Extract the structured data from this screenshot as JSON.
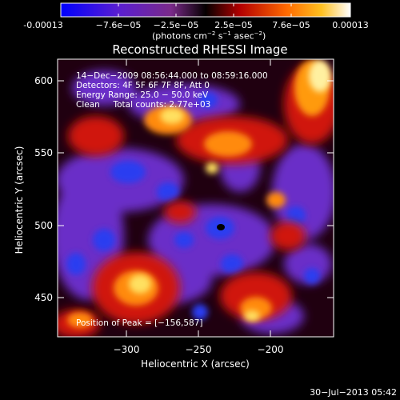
{
  "colorbar": {
    "tick_labels": [
      "-0.00013",
      "−7.6e−05",
      "−2.5e−05",
      "2.5e−05",
      "7.6e−05",
      "0.00013"
    ],
    "units_text": "(photons cm",
    "units_sup1": "−2",
    "units_mid1": " s",
    "units_sup2": "−1",
    "units_mid2": " asec",
    "units_sup3": "−2",
    "units_end": ")"
  },
  "title": "Reconstructed RHESSI Image",
  "info": {
    "time_range": "14−Dec−2009 08:56:44.000 to 08:59:16.000",
    "detectors": "Detectors: 4F 5F 6F 7F 8F, Att 0",
    "energy": "Energy Range: 25.0 − 50.0 keV",
    "clean": "Clean     Total counts: 2.77e+03",
    "peak": "Position of Peak = [−156,587]"
  },
  "axes": {
    "x_label": "Heliocentric X (arcsec)",
    "y_label": "Heliocentric Y (arcsec)",
    "x_ticks": [
      "−300",
      "−250",
      "−200"
    ],
    "y_ticks": [
      "600",
      "550",
      "500",
      "450"
    ]
  },
  "footer_timestamp": "30−Jul−2013 05:42",
  "colors": {
    "background": "#000000",
    "foreground": "#ffffff",
    "blue": "#2a3cf0",
    "purple": "#6a2dc8",
    "red": "#e02010",
    "orange": "#ff9a10",
    "yellow": "#ffe060"
  }
}
